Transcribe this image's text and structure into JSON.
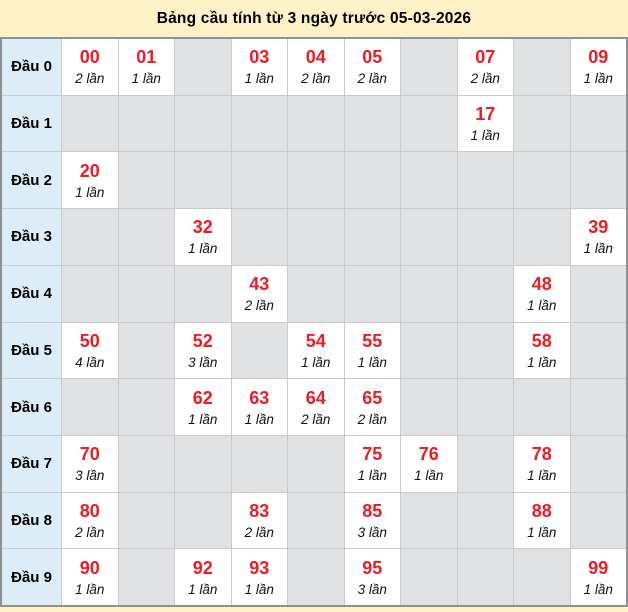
{
  "title": "Bảng cầu tính từ 3 ngày trước 05-03-2026",
  "colors": {
    "page_bg": "#fdf2c6",
    "table_border": "#8f9193",
    "grid_line": "#c8cacc",
    "label_bg": "#dcedf7",
    "empty_bg": "#e1e2e4",
    "filled_bg": "#ffffff",
    "number_red": "#ed1c24"
  },
  "table": {
    "rows": [
      {
        "label": "Đầu 0",
        "cells": [
          {
            "number": "00",
            "count": "2 lần"
          },
          {
            "number": "01",
            "count": "1 lần"
          },
          null,
          {
            "number": "03",
            "count": "1 lần"
          },
          {
            "number": "04",
            "count": "2 lần"
          },
          {
            "number": "05",
            "count": "2 lần"
          },
          null,
          {
            "number": "07",
            "count": "2 lần"
          },
          null,
          {
            "number": "09",
            "count": "1 lần"
          }
        ]
      },
      {
        "label": "Đầu 1",
        "cells": [
          null,
          null,
          null,
          null,
          null,
          null,
          null,
          {
            "number": "17",
            "count": "1 lần"
          },
          null,
          null
        ]
      },
      {
        "label": "Đầu 2",
        "cells": [
          {
            "number": "20",
            "count": "1 lần"
          },
          null,
          null,
          null,
          null,
          null,
          null,
          null,
          null,
          null
        ]
      },
      {
        "label": "Đầu 3",
        "cells": [
          null,
          null,
          {
            "number": "32",
            "count": "1 lần"
          },
          null,
          null,
          null,
          null,
          null,
          null,
          {
            "number": "39",
            "count": "1 lần"
          }
        ]
      },
      {
        "label": "Đầu 4",
        "cells": [
          null,
          null,
          null,
          {
            "number": "43",
            "count": "2 lần"
          },
          null,
          null,
          null,
          null,
          {
            "number": "48",
            "count": "1 lần"
          },
          null
        ]
      },
      {
        "label": "Đầu 5",
        "cells": [
          {
            "number": "50",
            "count": "4 lần"
          },
          null,
          {
            "number": "52",
            "count": "3 lần"
          },
          null,
          {
            "number": "54",
            "count": "1 lần"
          },
          {
            "number": "55",
            "count": "1 lần"
          },
          null,
          null,
          {
            "number": "58",
            "count": "1 lần"
          },
          null
        ]
      },
      {
        "label": "Đầu 6",
        "cells": [
          null,
          null,
          {
            "number": "62",
            "count": "1 lần"
          },
          {
            "number": "63",
            "count": "1 lần"
          },
          {
            "number": "64",
            "count": "2 lần"
          },
          {
            "number": "65",
            "count": "2 lần"
          },
          null,
          null,
          null,
          null
        ]
      },
      {
        "label": "Đầu 7",
        "cells": [
          {
            "number": "70",
            "count": "3 lần"
          },
          null,
          null,
          null,
          null,
          {
            "number": "75",
            "count": "1 lần"
          },
          {
            "number": "76",
            "count": "1 lần"
          },
          null,
          {
            "number": "78",
            "count": "1 lần"
          },
          null
        ]
      },
      {
        "label": "Đầu 8",
        "cells": [
          {
            "number": "80",
            "count": "2 lần"
          },
          null,
          null,
          {
            "number": "83",
            "count": "2 lần"
          },
          null,
          {
            "number": "85",
            "count": "3 lần"
          },
          null,
          null,
          {
            "number": "88",
            "count": "1 lần"
          },
          null
        ]
      },
      {
        "label": "Đầu 9",
        "cells": [
          {
            "number": "90",
            "count": "1 lần"
          },
          null,
          {
            "number": "92",
            "count": "1 lần"
          },
          {
            "number": "93",
            "count": "1 lần"
          },
          null,
          {
            "number": "95",
            "count": "3 lần"
          },
          null,
          null,
          null,
          {
            "number": "99",
            "count": "1 lần"
          }
        ]
      }
    ]
  }
}
